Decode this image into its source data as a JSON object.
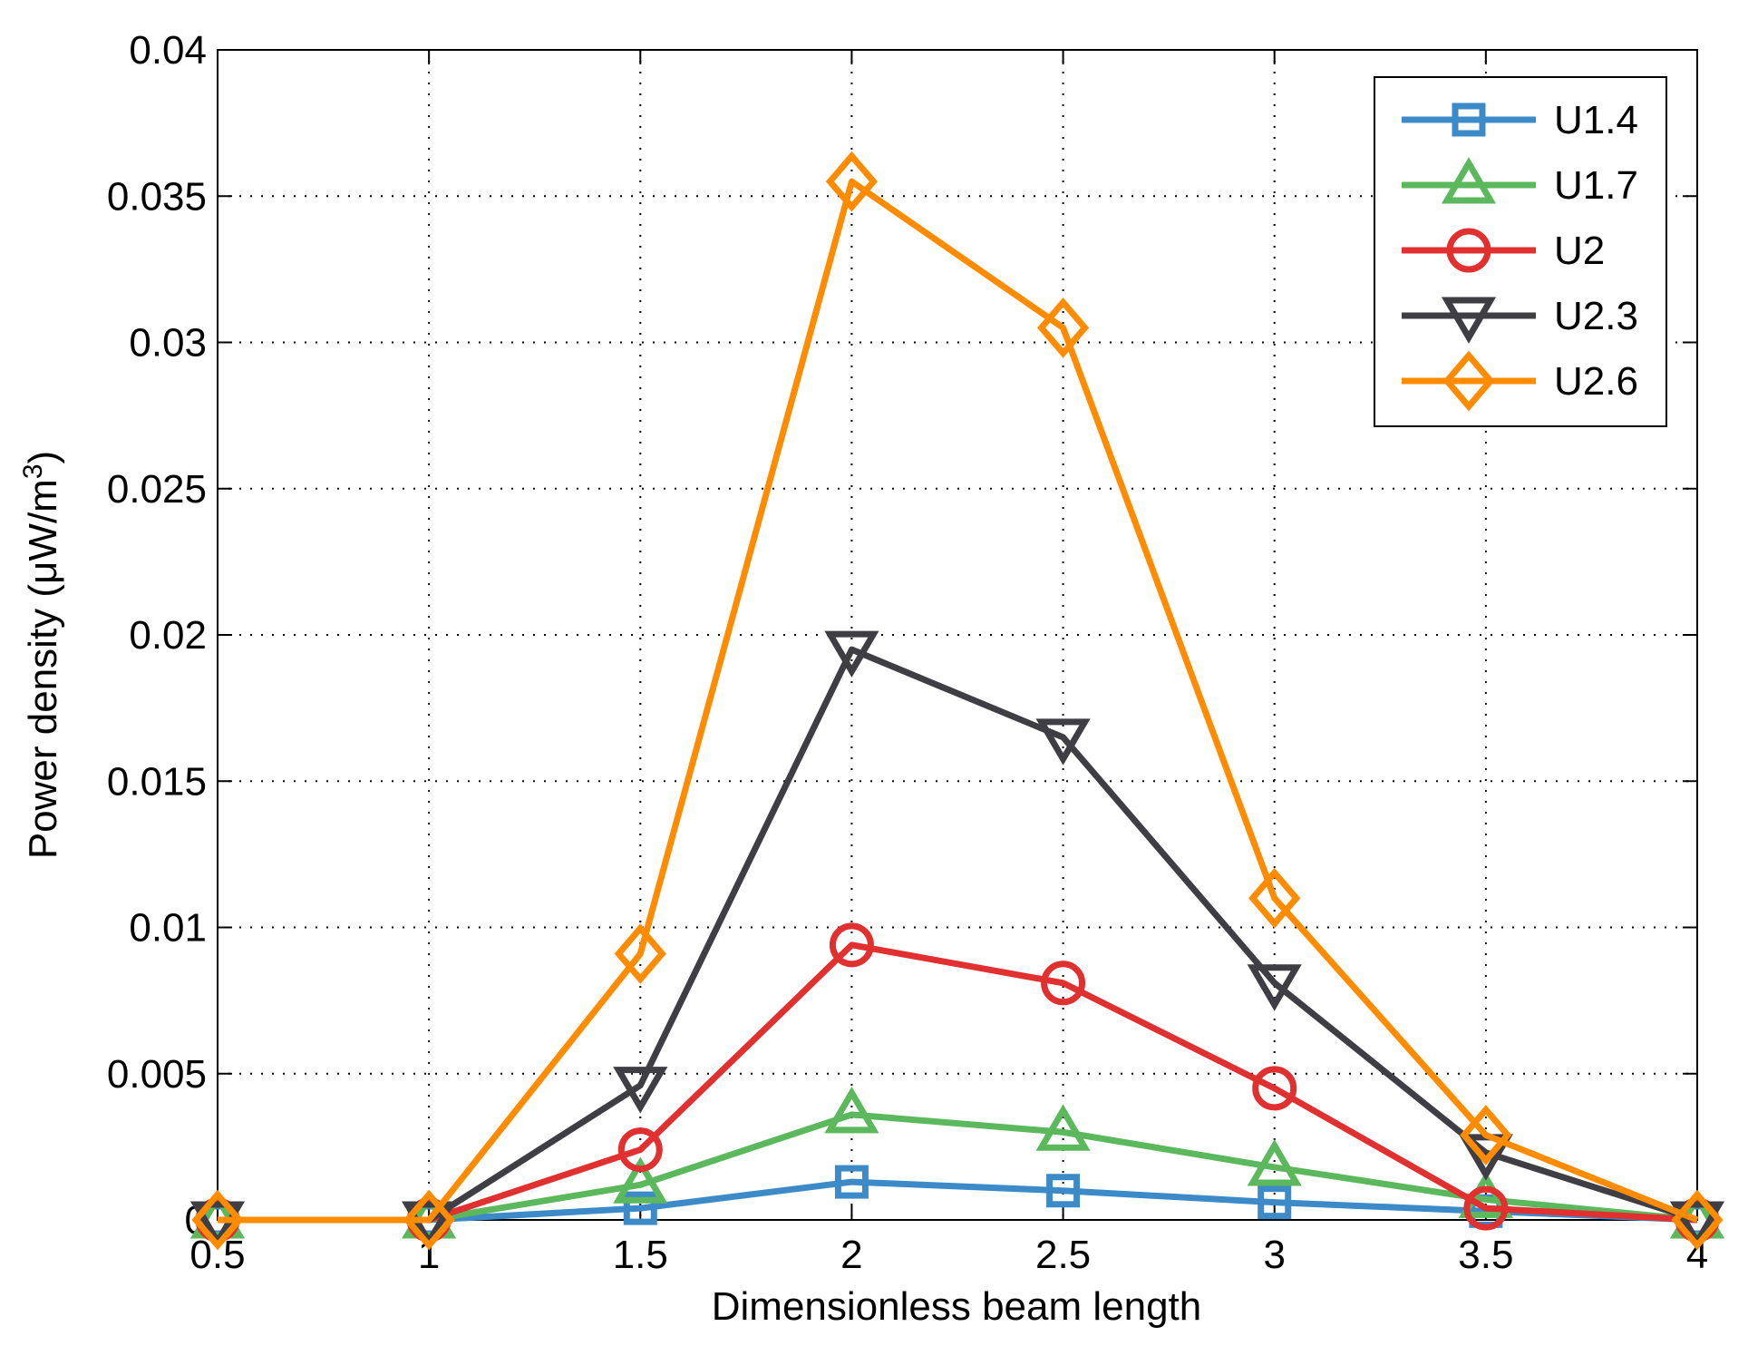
{
  "chart_data": {
    "type": "line",
    "title": "",
    "xlabel": "Dimensionless beam length",
    "ylabel_main": "Power density (μW/m",
    "ylabel_sup": "3",
    "ylabel_close": ")",
    "xlim": [
      0.5,
      4
    ],
    "ylim": [
      0,
      0.04
    ],
    "grid": true,
    "legend_position": "top-right",
    "x": [
      0.5,
      1,
      1.5,
      2,
      2.5,
      3,
      3.5,
      4
    ],
    "xticks": [
      "0.5",
      "1",
      "1.5",
      "2",
      "2.5",
      "3",
      "3.5",
      "4"
    ],
    "xtick_values": [
      0.5,
      1,
      1.5,
      2,
      2.5,
      3,
      3.5,
      4
    ],
    "yticks": [
      "0",
      "0.005",
      "0.01",
      "0.015",
      "0.02",
      "0.025",
      "0.03",
      "0.035",
      "0.04"
    ],
    "ytick_values": [
      0,
      0.005,
      0.01,
      0.015,
      0.02,
      0.025,
      0.03,
      0.035,
      0.04
    ],
    "series": [
      {
        "name": "U1.4",
        "marker": "square",
        "color": "#3c8ac8",
        "values": [
          0,
          0,
          0.0004,
          0.0013,
          0.001,
          0.0006,
          0.0003,
          0
        ]
      },
      {
        "name": "U1.7",
        "marker": "triangle-up",
        "color": "#5cb85c",
        "values": [
          0,
          0,
          0.0012,
          0.0036,
          0.003,
          0.0018,
          0.0007,
          0
        ]
      },
      {
        "name": "U2",
        "marker": "circle",
        "color": "#e03030",
        "values": [
          0,
          0,
          0.0024,
          0.0094,
          0.0081,
          0.0045,
          0.0004,
          0
        ]
      },
      {
        "name": "U2.3",
        "marker": "triangle-down",
        "color": "#3e3e44",
        "values": [
          0,
          0,
          0.0046,
          0.0195,
          0.0165,
          0.0081,
          0.0023,
          0
        ]
      },
      {
        "name": "U2.6",
        "marker": "diamond",
        "color": "#ff8c00",
        "values": [
          0,
          0,
          0.0091,
          0.0355,
          0.0305,
          0.011,
          0.0029,
          0
        ]
      }
    ]
  }
}
